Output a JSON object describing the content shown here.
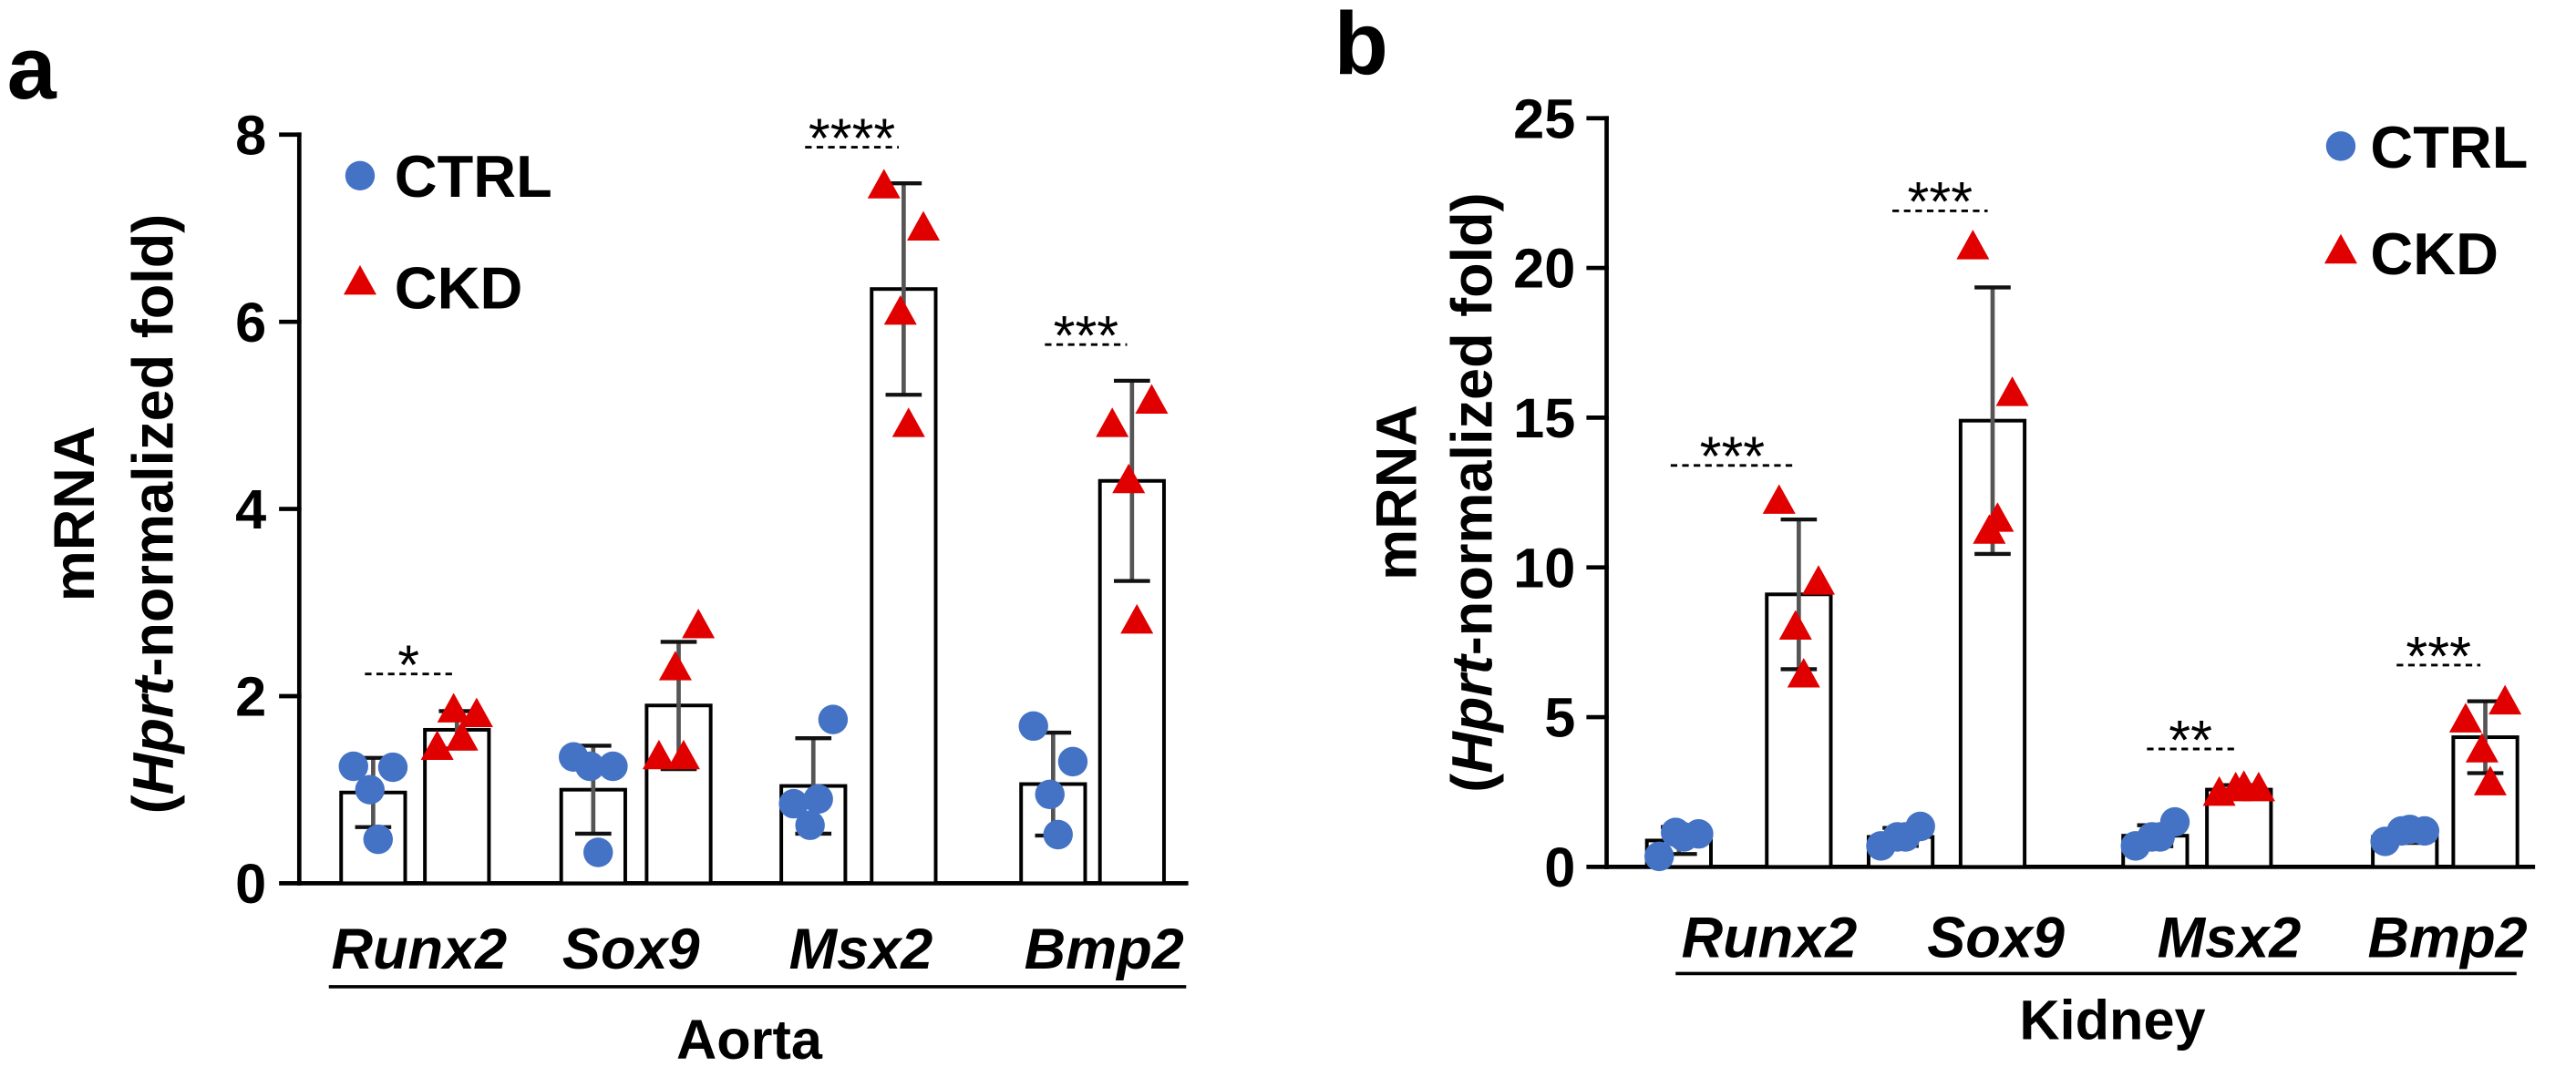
{
  "chart_data": [
    {
      "type": "bar",
      "panel_label": "a",
      "xlabel": "Aorta",
      "ylabel": {
        "line1": "mRNA",
        "open": "(",
        "gene": "Hprt",
        "rest": "-normalized fold)"
      },
      "ylim": [
        0,
        8
      ],
      "y_ticks": [
        0,
        2,
        4,
        6,
        8
      ],
      "categories": [
        "Runx2",
        "Sox9",
        "Msx2",
        "Bmp2"
      ],
      "series": [
        {
          "name": "CTRL",
          "color": "#4472C4",
          "means": [
            0.97,
            1.0,
            1.04,
            1.06
          ],
          "sd": [
            0.37,
            0.47,
            0.51,
            0.55
          ],
          "points": [
            [
              1.25,
              1.24,
              1.0,
              0.47
            ],
            [
              1.35,
              1.25,
              1.25,
              0.33
            ],
            [
              0.85,
              1.75,
              0.62,
              0.9
            ],
            [
              1.68,
              1.3,
              0.95,
              0.52
            ]
          ]
        },
        {
          "name": "CKD",
          "color": "#E00000",
          "means": [
            1.64,
            1.9,
            6.35,
            4.3
          ],
          "sd": [
            0.2,
            0.68,
            1.13,
            1.07
          ],
          "points": [
            [
              1.45,
              1.8,
              1.85,
              1.55
            ],
            [
              1.35,
              2.75,
              2.3,
              1.35
            ],
            [
              7.45,
              7.0,
              6.1,
              4.9
            ],
            [
              4.9,
              5.15,
              4.3,
              2.8
            ]
          ]
        }
      ],
      "significance": [
        {
          "category_index": 0,
          "label": "*"
        },
        {
          "category_index": 2,
          "label": "****"
        },
        {
          "category_index": 3,
          "label": "***"
        }
      ]
    },
    {
      "type": "bar",
      "panel_label": "b",
      "xlabel": "Kidney",
      "ylabel": {
        "line1": "mRNA",
        "open": "(",
        "gene": "Hprt",
        "rest": "-normalized fold)"
      },
      "ylim": [
        0,
        25
      ],
      "y_ticks": [
        0,
        5,
        10,
        15,
        20,
        25
      ],
      "categories": [
        "Runx2",
        "Sox9",
        "Msx2",
        "Bmp2"
      ],
      "series": [
        {
          "name": "CTRL",
          "color": "#4472C4",
          "means": [
            0.88,
            1.0,
            1.04,
            1.0
          ],
          "sd": [
            0.45,
            0.3,
            0.35,
            0.2
          ],
          "points": [
            [
              0.35,
              1.1,
              1.15,
              1.0
            ],
            [
              0.7,
              1.35,
              1.0,
              1.0
            ],
            [
              0.7,
              1.5,
              1.0,
              1.0
            ],
            [
              0.85,
              1.2,
              1.2,
              1.25
            ]
          ]
        },
        {
          "name": "CKD",
          "color": "#E00000",
          "means": [
            9.1,
            14.9,
            2.58,
            4.33
          ],
          "sd": [
            2.5,
            4.45,
            0.15,
            1.2
          ],
          "points": [
            [
              12.2,
              9.5,
              8.0,
              6.4
            ],
            [
              20.7,
              15.8,
              11.2,
              11.6
            ],
            [
              2.45,
              2.6,
              2.6,
              2.65
            ],
            [
              4.9,
              5.5,
              3.9,
              2.8
            ]
          ]
        }
      ],
      "significance": [
        {
          "category_index": 0,
          "label": "***"
        },
        {
          "category_index": 1,
          "label": "***"
        },
        {
          "category_index": 2,
          "label": "**"
        },
        {
          "category_index": 3,
          "label": "***"
        }
      ]
    }
  ]
}
